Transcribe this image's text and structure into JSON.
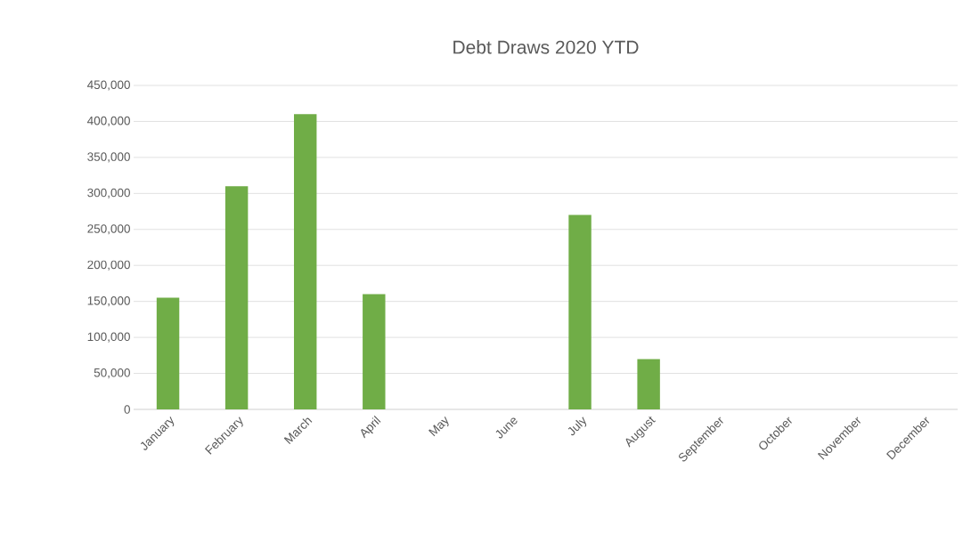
{
  "chart_data": {
    "type": "bar",
    "title": "Debt Draws 2020 YTD",
    "categories": [
      "January",
      "February",
      "March",
      "April",
      "May",
      "June",
      "July",
      "August",
      "September",
      "October",
      "November",
      "December"
    ],
    "values": [
      155000,
      310000,
      410000,
      160000,
      null,
      null,
      270000,
      70000,
      null,
      null,
      null,
      null
    ],
    "color": "#70ad47",
    "ylim": [
      0,
      450000
    ],
    "yticks": [
      {
        "value": 0,
        "label": "0"
      },
      {
        "value": 50000,
        "label": "50,000"
      },
      {
        "value": 100000,
        "label": "100,000"
      },
      {
        "value": 150000,
        "label": "150,000"
      },
      {
        "value": 200000,
        "label": "200,000"
      },
      {
        "value": 250000,
        "label": "250,000"
      },
      {
        "value": 300000,
        "label": "300,000"
      },
      {
        "value": 350000,
        "label": "350,000"
      },
      {
        "value": 400000,
        "label": "400,000"
      },
      {
        "value": 450000,
        "label": "450,000"
      }
    ],
    "grid": "y"
  }
}
